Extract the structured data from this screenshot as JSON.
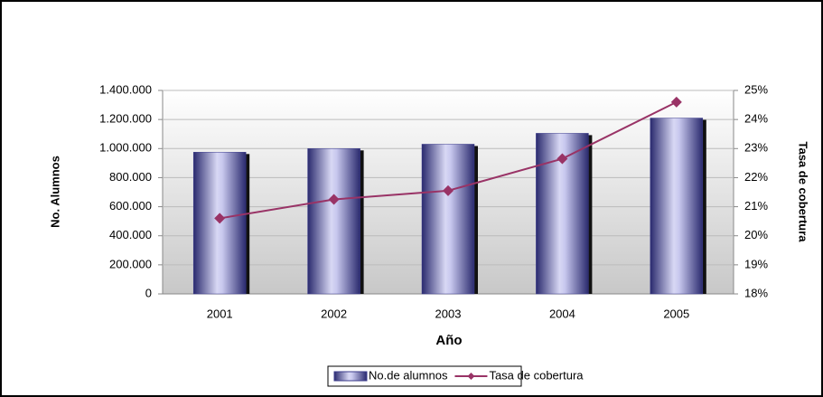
{
  "chart_data": {
    "type": "bar",
    "categories": [
      "2001",
      "2002",
      "2003",
      "2004",
      "2005"
    ],
    "x_label": "Año",
    "y_label": "No. Alumnos",
    "y2_label": "Tasa de cobertura",
    "series": [
      {
        "name": "No.de alumnos",
        "type": "bar",
        "color": "#3c3c8c",
        "values": [
          975000,
          1000000,
          1030000,
          1105000,
          1210000
        ]
      },
      {
        "name": "Tasa de cobertura",
        "type": "line",
        "axis": "y2",
        "color": "#993366",
        "values": [
          20.6,
          21.25,
          21.55,
          22.65,
          24.6
        ]
      }
    ],
    "ylim": [
      0,
      1400000
    ],
    "yticks": [
      0,
      {
        "value": 200000,
        "label": "200.000"
      },
      {
        "value": 400000,
        "label": "400.000"
      },
      {
        "value": 600000,
        "label": "600.000"
      },
      {
        "value": 800000,
        "label": "800.000"
      },
      {
        "value": 1000000,
        "label": "1.000.000"
      },
      {
        "value": 1200000,
        "label": "1.200.000"
      },
      {
        "value": 1400000,
        "label": "1.400.000"
      }
    ],
    "y2lim": [
      18,
      25
    ],
    "y2ticks": [
      {
        "value": 18,
        "label": "18%"
      },
      {
        "value": 19,
        "label": "19%"
      },
      {
        "value": 20,
        "label": "20%"
      },
      {
        "value": 21,
        "label": "21%"
      },
      {
        "value": 22,
        "label": "22%"
      },
      {
        "value": 23,
        "label": "23%"
      },
      {
        "value": 24,
        "label": "24%"
      },
      {
        "value": 25,
        "label": "25%"
      }
    ],
    "grid": true,
    "legend": "bottom"
  }
}
